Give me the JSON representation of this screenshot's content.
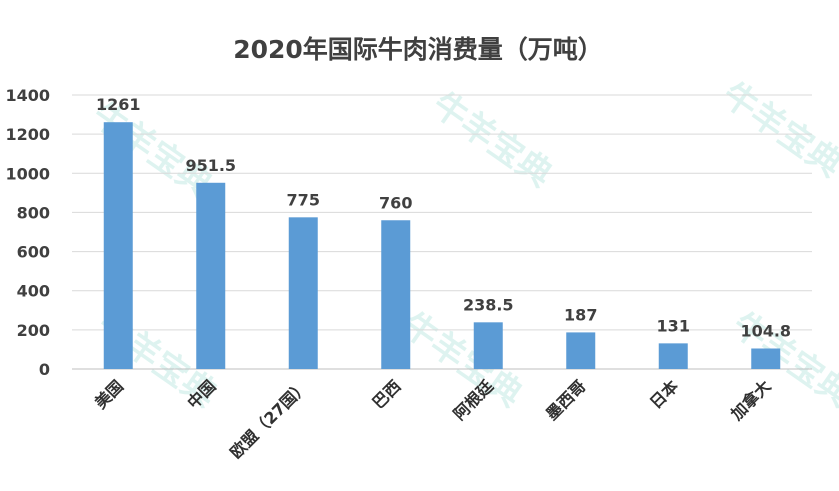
{
  "colors": {
    "bar": "#5b9bd5",
    "text": "#404040",
    "grid": "#d9d9d9"
  },
  "watermark_text": "牛羊宝典",
  "chart_data": {
    "type": "bar",
    "title": "2020年国际牛肉消费量（万吨）",
    "xlabel": "",
    "ylabel": "",
    "categories": [
      "美国",
      "中国",
      "欧盟（27国）",
      "巴西",
      "阿根廷",
      "墨西哥",
      "日本",
      "加拿大"
    ],
    "values": [
      1261,
      951.5,
      775,
      760,
      238.5,
      187,
      131,
      104.8
    ],
    "value_labels": [
      "1261",
      "951.5",
      "775",
      "760",
      "238.5",
      "187",
      "131",
      "104.8"
    ],
    "ylim": [
      0,
      1400
    ],
    "yticks": [
      0,
      200,
      400,
      600,
      800,
      1000,
      1200,
      1400
    ],
    "grid": true,
    "legend": "none"
  }
}
